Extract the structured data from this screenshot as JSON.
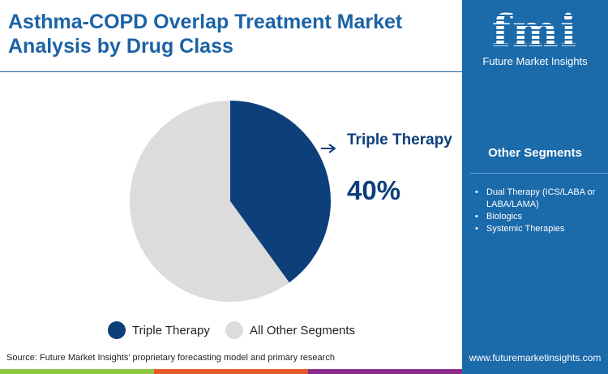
{
  "title": "Asthma-COPD Overlap Treatment Market Analysis by Drug Class",
  "logo": {
    "mark": "fmi",
    "name": "Future Market Insights"
  },
  "other_segments": {
    "title": "Other Segments",
    "items": [
      "Dual Therapy (ICS/LABA or LABA/LAMA)",
      "Biologics",
      "Systemic Therapies"
    ]
  },
  "source": "Source: Future Market Insights’ proprietary forecasting model and primary research",
  "url": "www.futuremarketinsights.com",
  "callout": {
    "label": "Triple Therapy",
    "value": "40%"
  },
  "colors": {
    "primary": "#0d3f7a",
    "other": "#dcdcdc",
    "panel": "#1b6aaa",
    "stripes": [
      "#8dc63f",
      "#e8572a",
      "#8b2c8c"
    ]
  },
  "chart_data": {
    "type": "pie",
    "series": [
      {
        "name": "Triple Therapy",
        "value": 40,
        "color": "#0d3f7a"
      },
      {
        "name": "All Other Segments",
        "value": 60,
        "color": "#dcdcdc"
      }
    ],
    "legend": "bottom"
  }
}
